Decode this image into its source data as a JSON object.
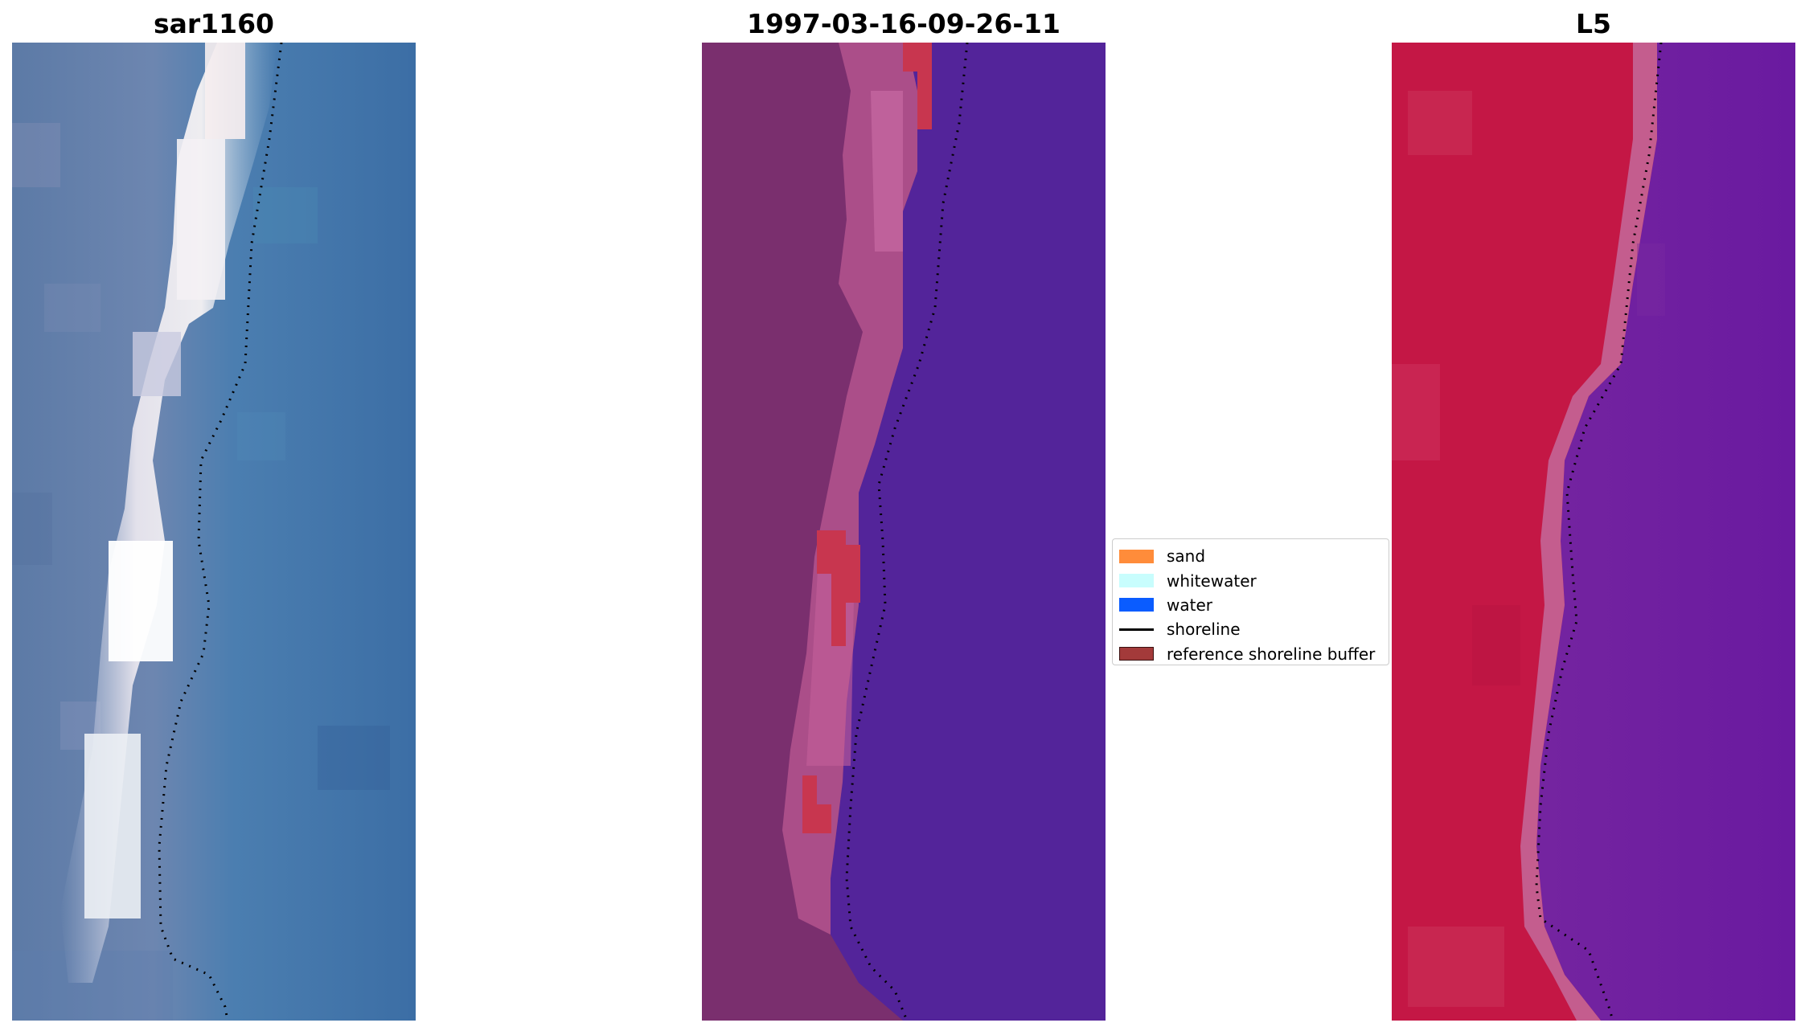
{
  "panels": [
    {
      "title": "sar1160"
    },
    {
      "title": "1997-03-16-09-26-11"
    },
    {
      "title": "L5"
    }
  ],
  "legend": {
    "items": [
      {
        "label": "sand",
        "kind": "patch",
        "color": "#ff8c3a"
      },
      {
        "label": "whitewater",
        "kind": "patch",
        "color": "#c8fdfd"
      },
      {
        "label": "water",
        "kind": "patch",
        "color": "#0a5cff"
      },
      {
        "label": "shoreline",
        "kind": "line",
        "color": "#000000"
      },
      {
        "label": "reference shoreline buffer",
        "kind": "patch",
        "color": "#a33a3a"
      }
    ]
  },
  "colors": {
    "rgb_water": "#3a6fa8",
    "rgb_sand_bright": "#f2eef0",
    "class_water": "#53249a",
    "class_land": "#7a2f6e",
    "class_beach": "#c05a95",
    "class_buffer": "#c8364f",
    "index_land": "#c41745",
    "index_water": "#6a1aa0"
  }
}
